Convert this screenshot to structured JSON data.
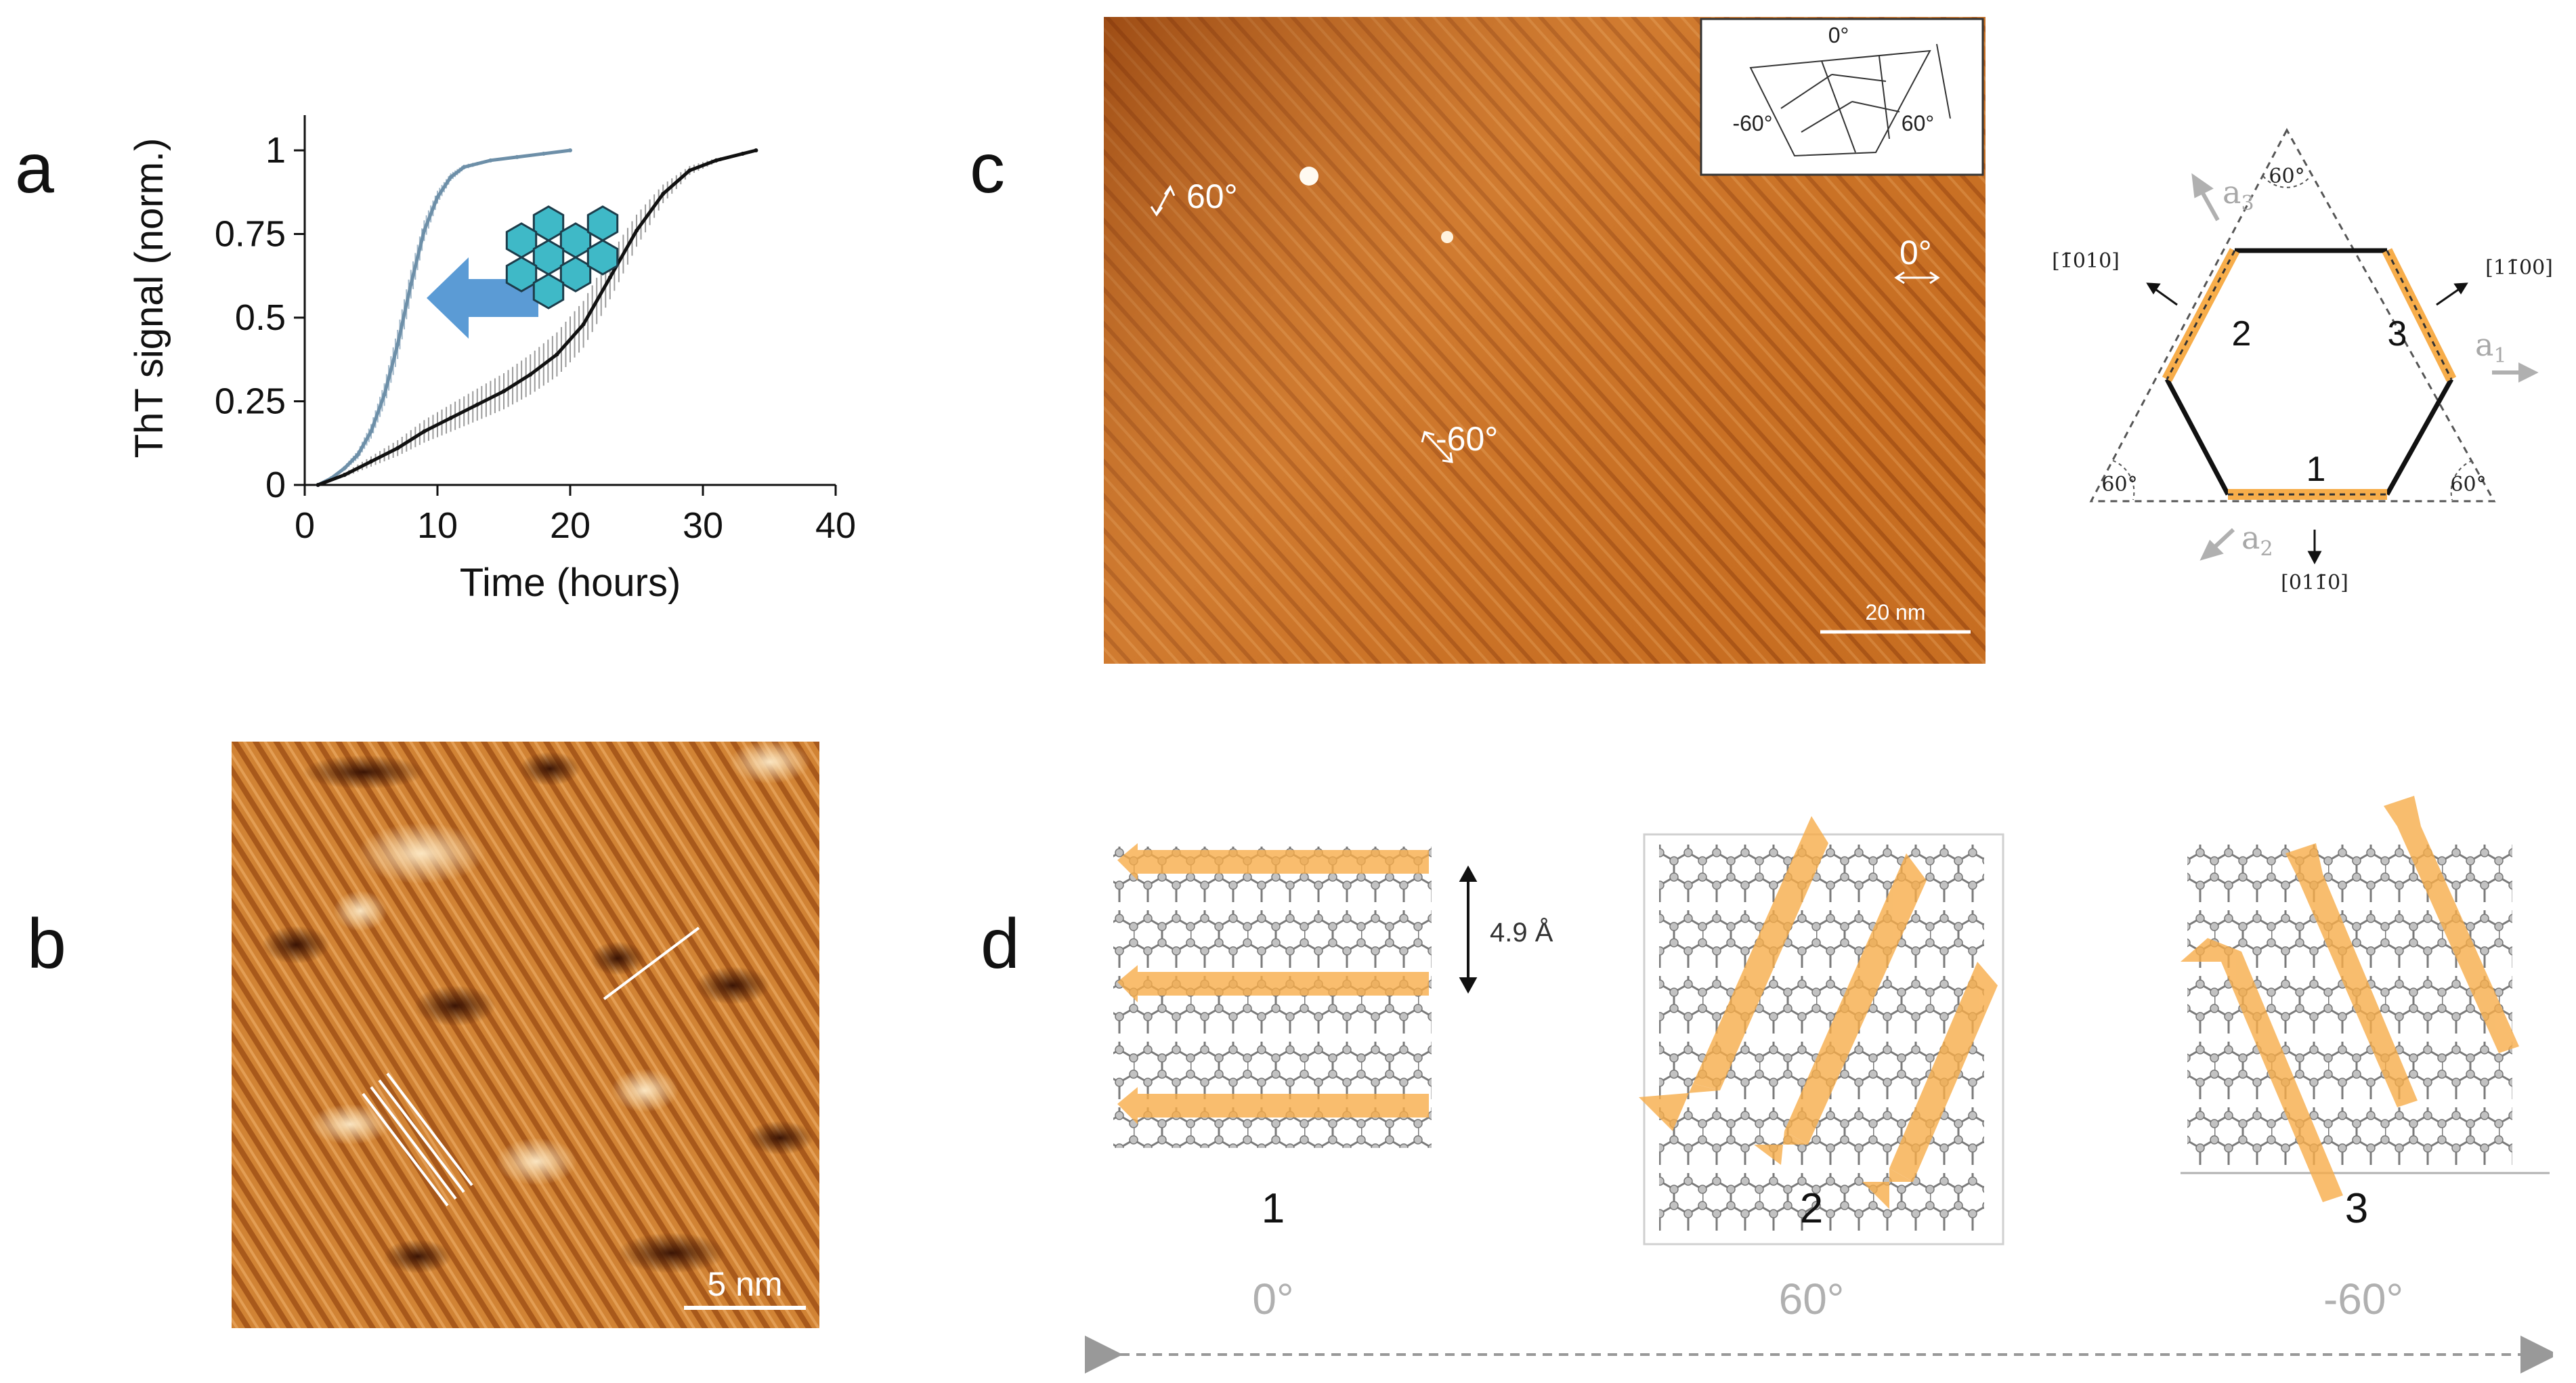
{
  "panels": {
    "a": {
      "letter": "a"
    },
    "b": {
      "letter": "b",
      "scalebar": "5 nm"
    },
    "c": {
      "letter": "c",
      "scalebar": "20 nm",
      "angles_image": [
        "60°",
        "0°",
        "-60°"
      ],
      "inset_labels": [
        "0°",
        "-60°",
        "60°"
      ],
      "triangle": {
        "corner_angles": [
          "60°",
          "60°",
          "60°"
        ],
        "edge_numbers": [
          "1",
          "2",
          "3"
        ],
        "directions": [
          "[1̄010]",
          "[11̄00]",
          "[011̄0]"
        ],
        "axes": [
          "a",
          "a",
          "a"
        ],
        "axis_subscripts": [
          "3",
          "1",
          "2"
        ]
      }
    },
    "d": {
      "letter": "d",
      "spacing": "4.9 Å",
      "numbers": [
        "1",
        "2",
        "3"
      ],
      "angles": [
        "0°",
        "60°",
        "-60°"
      ]
    }
  },
  "colors": {
    "afm_dark": "#8a3d0c",
    "afm_mid": "#c8731f",
    "afm_light": "#f2c080",
    "orange_band": "#f7ad4a",
    "blue_series": "#6d8fa8",
    "black_series": "#111111",
    "arrow_blue": "#5b9bd5",
    "gray_label": "#b0b0b0",
    "molecule_teal": "#3fb9c7"
  },
  "chart_data": {
    "type": "line",
    "xlabel": "Time (hours)",
    "ylabel": "ThT signal (norm.)",
    "xlim": [
      0,
      40
    ],
    "ylim": [
      0,
      1
    ],
    "xticks": [
      "0",
      "10",
      "20",
      "30",
      "40"
    ],
    "yticks": [
      "0",
      "0.25",
      "0.5",
      "0.75",
      "1"
    ],
    "series": [
      {
        "color": "#6d8fa8",
        "x": [
          1,
          2,
          3,
          4,
          5,
          6,
          7,
          8,
          9,
          10,
          11,
          12,
          14,
          16,
          18,
          20
        ],
        "y": [
          0.0,
          0.02,
          0.05,
          0.09,
          0.16,
          0.27,
          0.42,
          0.6,
          0.76,
          0.86,
          0.92,
          0.95,
          0.97,
          0.98,
          0.99,
          1.0
        ]
      },
      {
        "color": "#111111",
        "x": [
          1,
          3,
          5,
          7,
          9,
          11,
          13,
          15,
          17,
          19,
          21,
          23,
          25,
          27,
          29,
          31,
          33,
          34
        ],
        "y": [
          0.0,
          0.03,
          0.07,
          0.11,
          0.16,
          0.2,
          0.24,
          0.28,
          0.33,
          0.39,
          0.48,
          0.62,
          0.76,
          0.87,
          0.94,
          0.97,
          0.99,
          1.0
        ]
      }
    ]
  }
}
